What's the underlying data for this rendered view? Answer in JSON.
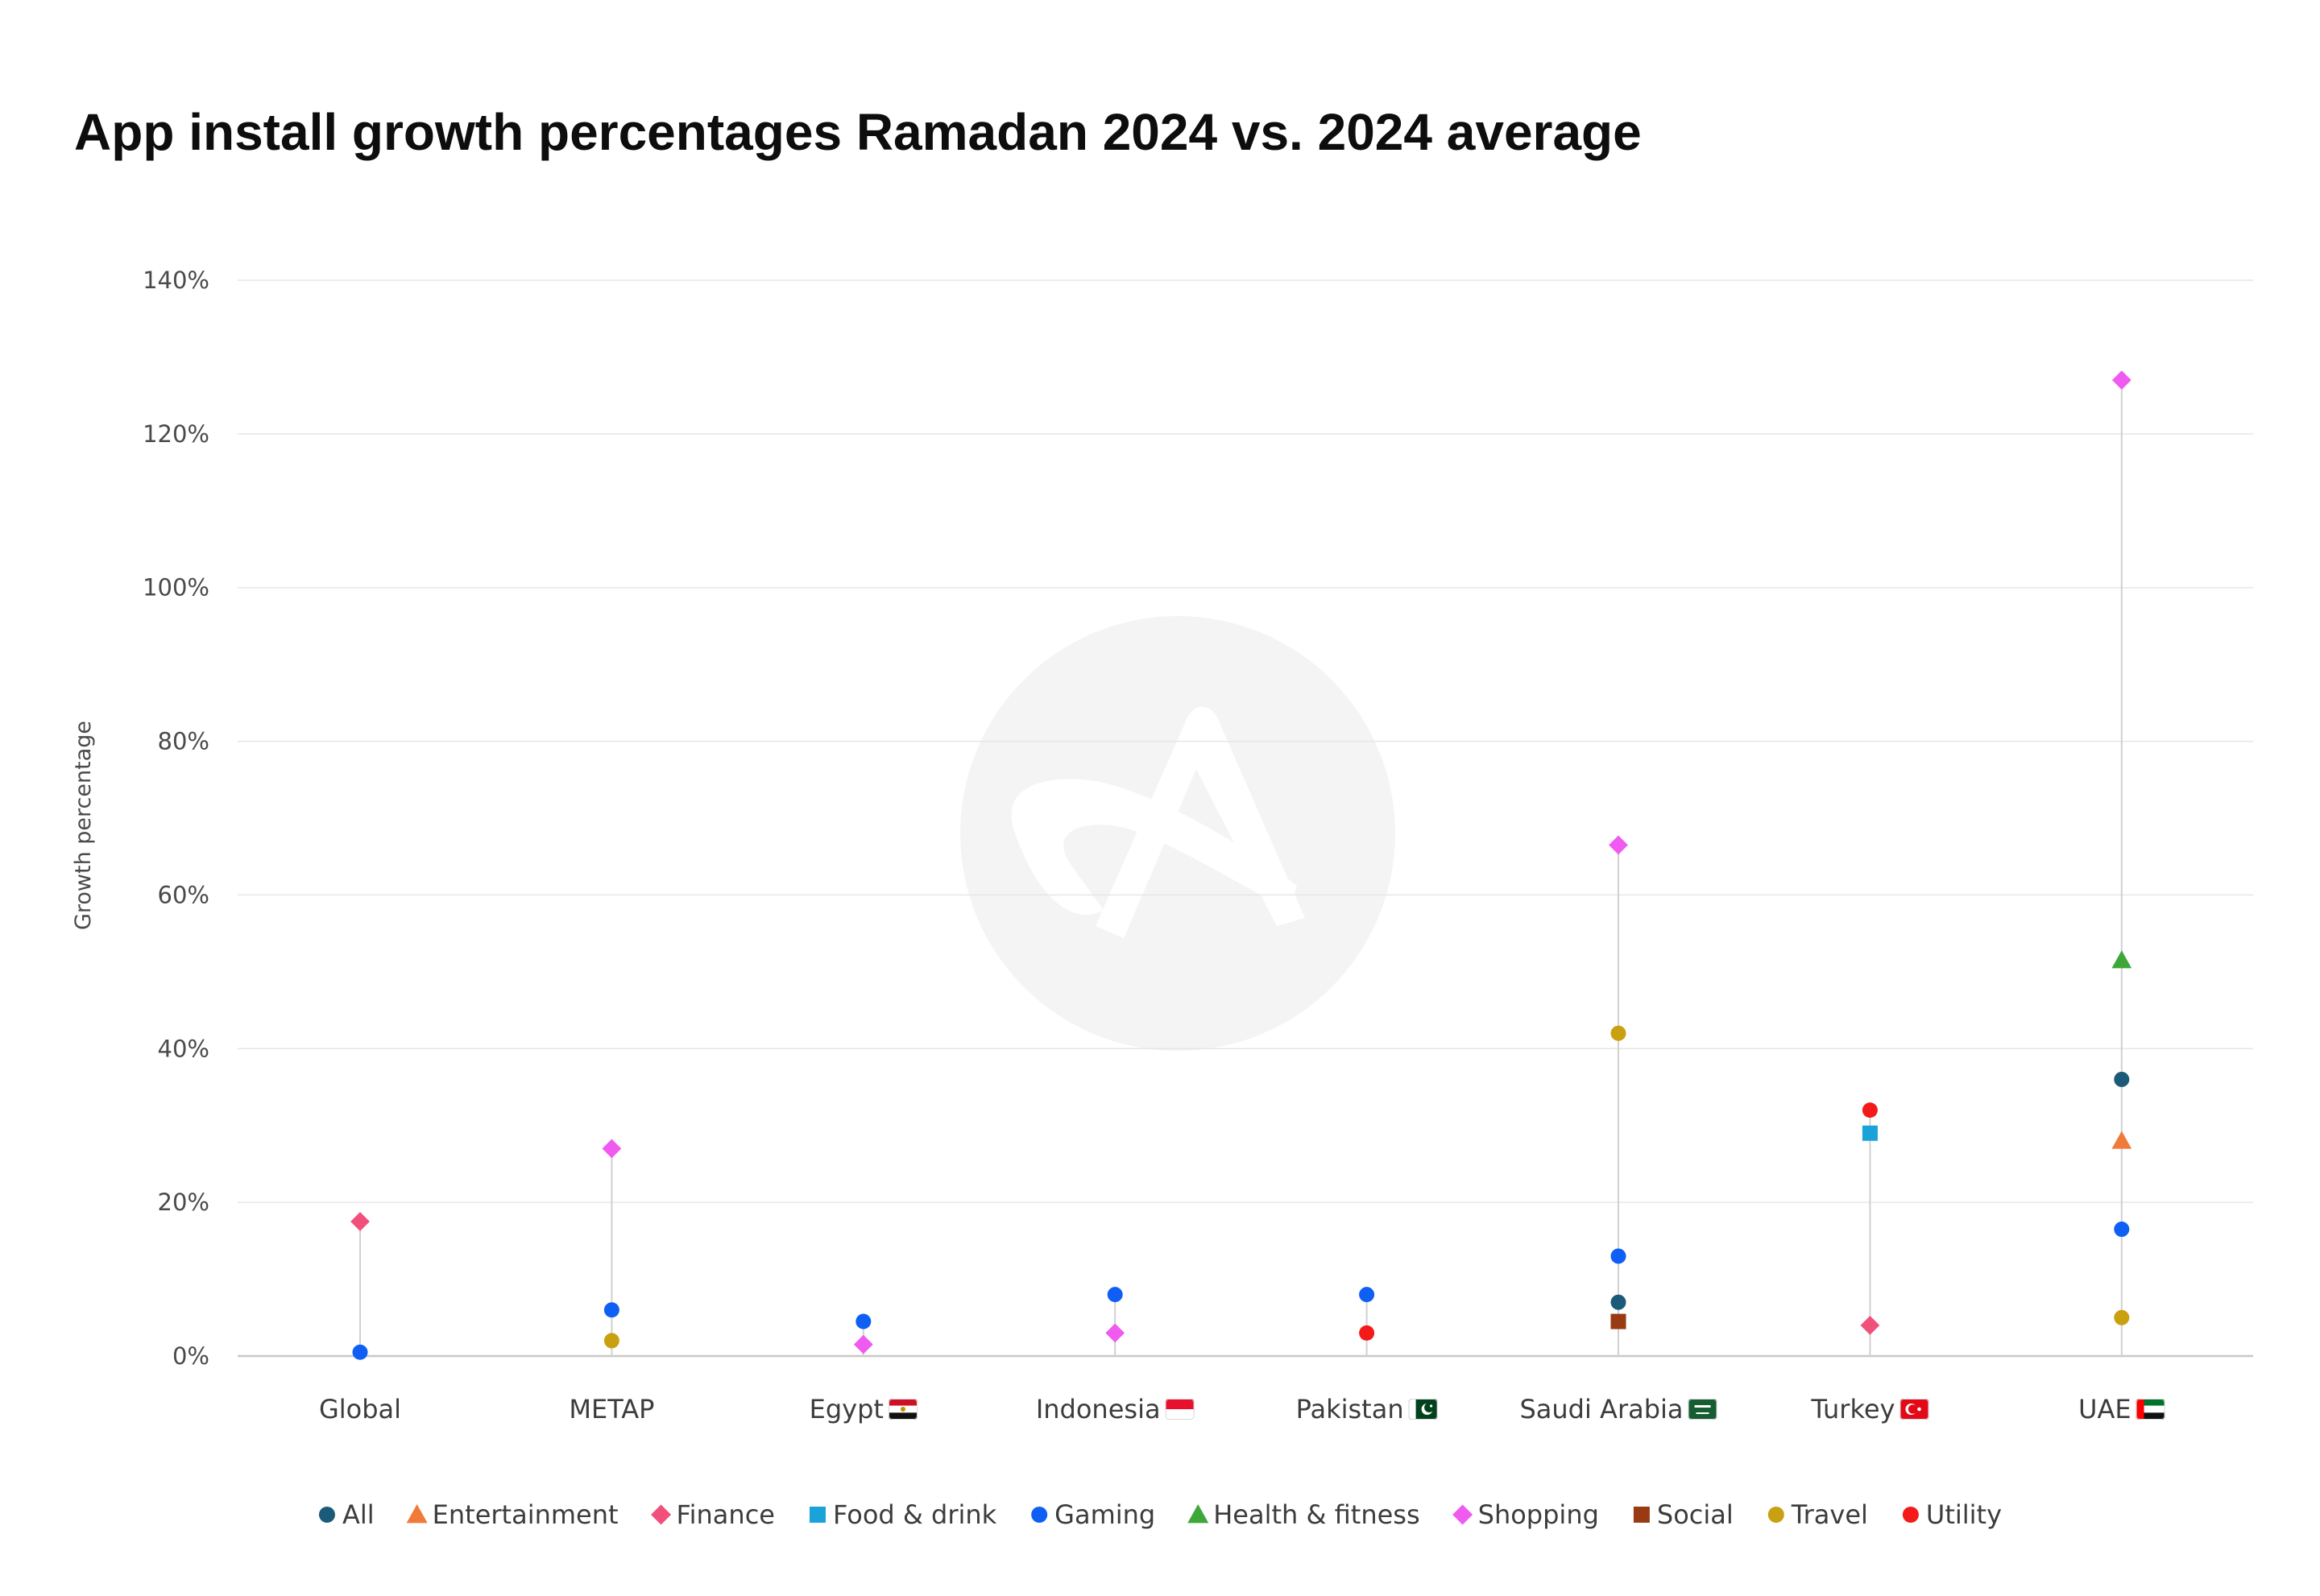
{
  "chart_data": {
    "type": "scatter",
    "title": "App install growth percentages Ramadan 2024 vs. 2024 average",
    "ylabel": "Growth percentage",
    "xlabel": "",
    "ylim": [
      0,
      140
    ],
    "yticks": [
      0,
      20,
      40,
      60,
      80,
      100,
      120,
      140
    ],
    "ytick_labels": [
      "0%",
      "20%",
      "40%",
      "60%",
      "80%",
      "100%",
      "120%",
      "140%"
    ],
    "grid": true,
    "legend_position": "bottom",
    "categories": [
      "Global",
      "METAP",
      "Egypt",
      "Indonesia",
      "Pakistan",
      "Saudi Arabia",
      "Turkey",
      "UAE"
    ],
    "category_flags": {
      "Egypt": "egypt-flag-icon",
      "Indonesia": "indonesia-flag-icon",
      "Pakistan": "pakistan-flag-icon",
      "Saudi Arabia": "saudi-arabia-flag-icon",
      "Turkey": "turkey-flag-icon",
      "UAE": "uae-flag-icon"
    },
    "series": [
      {
        "name": "All",
        "marker": "circle",
        "color": "#1c5a7a",
        "values": [
          null,
          null,
          null,
          null,
          null,
          7,
          null,
          36
        ]
      },
      {
        "name": "Entertainment",
        "marker": "triangle",
        "color": "#f07a3a",
        "values": [
          null,
          null,
          null,
          null,
          null,
          null,
          null,
          28
        ]
      },
      {
        "name": "Finance",
        "marker": "diamond",
        "color": "#f0507a",
        "values": [
          17.5,
          null,
          null,
          null,
          null,
          null,
          4,
          null
        ]
      },
      {
        "name": "Food & drink",
        "marker": "square",
        "color": "#1aa3d8",
        "values": [
          null,
          null,
          null,
          null,
          null,
          null,
          29,
          null
        ]
      },
      {
        "name": "Gaming",
        "marker": "circle",
        "color": "#0f5ff5",
        "values": [
          0.5,
          6,
          4.5,
          8,
          8,
          13,
          null,
          16.5
        ]
      },
      {
        "name": "Health & fitness",
        "marker": "triangle",
        "color": "#3fa63a",
        "values": [
          null,
          null,
          null,
          null,
          null,
          null,
          null,
          51.5
        ]
      },
      {
        "name": "Shopping",
        "marker": "diamond",
        "color": "#f05af0",
        "values": [
          null,
          27,
          1.5,
          3,
          null,
          66.5,
          null,
          127
        ]
      },
      {
        "name": "Social",
        "marker": "square",
        "color": "#9a3a12",
        "values": [
          null,
          null,
          null,
          null,
          null,
          4.5,
          null,
          null
        ]
      },
      {
        "name": "Travel",
        "marker": "circle",
        "color": "#c9a010",
        "values": [
          null,
          2,
          null,
          null,
          null,
          42,
          null,
          5
        ]
      },
      {
        "name": "Utility",
        "marker": "circle",
        "color": "#f51a1a",
        "values": [
          null,
          null,
          null,
          null,
          3,
          null,
          32,
          null
        ]
      }
    ],
    "watermark": "appsflyer-logo-icon"
  }
}
